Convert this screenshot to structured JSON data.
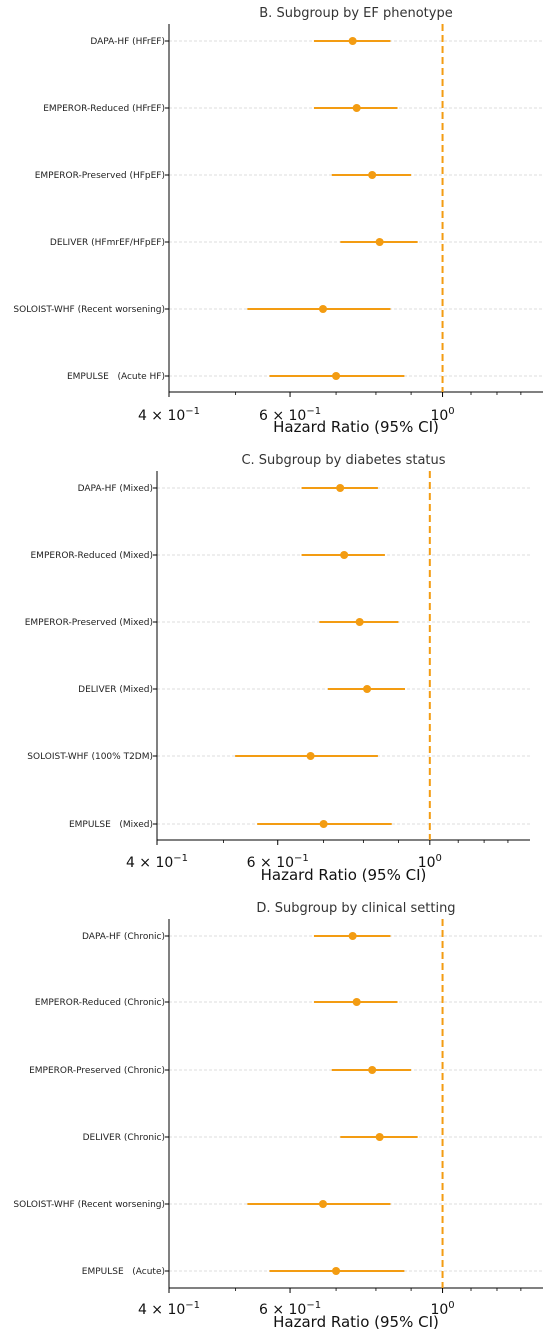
{
  "colors": {
    "accent": "#F39C12",
    "grid": "#BBBBBB",
    "axis": "#000000"
  },
  "chart_data": [
    {
      "type": "scatter",
      "subtype": "forest-plot",
      "title": "B. Subgroup by EF phenotype",
      "xlabel": "Hazard Ratio (95% CI)",
      "xscale": "log",
      "xlim": [
        0.4,
        1.4
      ],
      "xticks": [
        {
          "value": 0.4,
          "base": "4 × 10",
          "exp": "−1"
        },
        {
          "value": 0.6,
          "base": "6 × 10",
          "exp": "−1"
        },
        {
          "value": 1.0,
          "base": "10",
          "exp": "0"
        }
      ],
      "reference_line": 1.0,
      "grid": "horizontal dashed",
      "categories": [
        "DAPA-HF (HFrEF)",
        "EMPEROR-Reduced (HFrEF)",
        "EMPEROR-Preserved (HFpEF)",
        "DELIVER (HFmrEF/HFpEF)",
        "SOLOIST-WHF (Recent worsening)",
        "EMPULSE   (Acute HF)"
      ],
      "hr": [
        0.74,
        0.75,
        0.79,
        0.81,
        0.67,
        0.7
      ],
      "ci_low": [
        0.65,
        0.65,
        0.69,
        0.71,
        0.52,
        0.56
      ],
      "ci_high": [
        0.84,
        0.86,
        0.9,
        0.92,
        0.84,
        0.88
      ]
    },
    {
      "type": "scatter",
      "subtype": "forest-plot",
      "title": "C. Subgroup by diabetes status",
      "xlabel": "Hazard Ratio (95% CI)",
      "xscale": "log",
      "xlim": [
        0.4,
        1.4
      ],
      "xticks": [
        {
          "value": 0.4,
          "base": "4 × 10",
          "exp": "−1"
        },
        {
          "value": 0.6,
          "base": "6 × 10",
          "exp": "−1"
        },
        {
          "value": 1.0,
          "base": "10",
          "exp": "0"
        }
      ],
      "reference_line": 1.0,
      "grid": "horizontal dashed",
      "categories": [
        "DAPA-HF (Mixed)",
        "EMPEROR-Reduced (Mixed)",
        "EMPEROR-Preserved (Mixed)",
        "DELIVER (Mixed)",
        "SOLOIST-WHF (100% T2DM)",
        "EMPULSE   (Mixed)"
      ],
      "hr": [
        0.74,
        0.75,
        0.79,
        0.81,
        0.67,
        0.7
      ],
      "ci_low": [
        0.65,
        0.65,
        0.69,
        0.71,
        0.52,
        0.56
      ],
      "ci_high": [
        0.84,
        0.86,
        0.9,
        0.92,
        0.84,
        0.88
      ]
    },
    {
      "type": "scatter",
      "subtype": "forest-plot",
      "title": "D. Subgroup by clinical setting",
      "xlabel": "Hazard Ratio (95% CI)",
      "xscale": "log",
      "xlim": [
        0.4,
        1.4
      ],
      "xticks": [
        {
          "value": 0.4,
          "base": "4 × 10",
          "exp": "−1"
        },
        {
          "value": 0.6,
          "base": "6 × 10",
          "exp": "−1"
        },
        {
          "value": 1.0,
          "base": "10",
          "exp": "0"
        }
      ],
      "reference_line": 1.0,
      "grid": "horizontal dashed",
      "categories": [
        "DAPA-HF (Chronic)",
        "EMPEROR-Reduced (Chronic)",
        "EMPEROR-Preserved (Chronic)",
        "DELIVER (Chronic)",
        "SOLOIST-WHF (Recent worsening)",
        "EMPULSE   (Acute)"
      ],
      "hr": [
        0.74,
        0.75,
        0.79,
        0.81,
        0.67,
        0.7
      ],
      "ci_low": [
        0.65,
        0.65,
        0.69,
        0.71,
        0.52,
        0.56
      ],
      "ci_high": [
        0.84,
        0.86,
        0.9,
        0.92,
        0.84,
        0.88
      ]
    }
  ]
}
